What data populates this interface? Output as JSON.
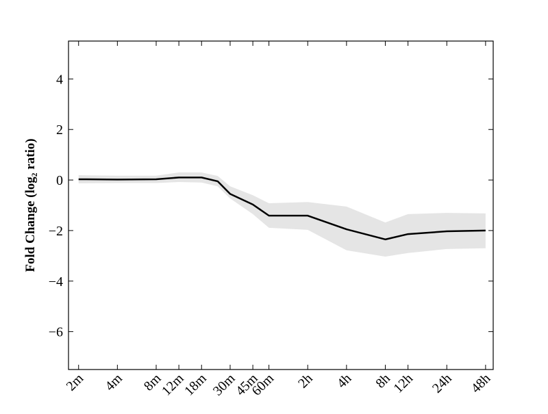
{
  "chart_data": {
    "type": "line",
    "ylabel": "Fold Change (log₂ ratio)",
    "x": [
      2,
      4,
      8,
      12,
      18,
      24,
      30,
      45,
      60,
      120,
      240,
      480,
      720,
      1440,
      2880
    ],
    "series": [
      {
        "color": "#000000",
        "values": [
          0.03,
          0.02,
          0.03,
          0.1,
          0.1,
          -0.05,
          -0.55,
          -0.97,
          -1.41,
          -1.41,
          -1.95,
          -2.35,
          -2.14,
          -2.03,
          -2.0
        ]
      }
    ],
    "band_upper": [
      0.19,
      0.17,
      0.17,
      0.3,
      0.3,
      0.16,
      -0.25,
      -0.6,
      -0.92,
      -0.87,
      -1.05,
      -1.68,
      -1.35,
      -1.3,
      -1.32
    ],
    "band_lower": [
      -0.13,
      -0.12,
      -0.12,
      -0.08,
      -0.1,
      -0.25,
      -0.73,
      -1.35,
      -1.89,
      -1.97,
      -2.78,
      -3.03,
      -2.89,
      -2.73,
      -2.7
    ],
    "band_color": "#e5e5e5",
    "xscale": "log",
    "xlim": [
      1.67,
      3300
    ],
    "xticks": [
      {
        "value": 2,
        "label": "2m"
      },
      {
        "value": 4,
        "label": "4m"
      },
      {
        "value": 8,
        "label": "8m"
      },
      {
        "value": 12,
        "label": "12m"
      },
      {
        "value": 18,
        "label": "18m"
      },
      {
        "value": 30,
        "label": "30m"
      },
      {
        "value": 45,
        "label": "45m"
      },
      {
        "value": 60,
        "label": "60m"
      },
      {
        "value": 120,
        "label": "2h"
      },
      {
        "value": 240,
        "label": "4h"
      },
      {
        "value": 480,
        "label": "8h"
      },
      {
        "value": 720,
        "label": "12h"
      },
      {
        "value": 1440,
        "label": "24h"
      },
      {
        "value": 2880,
        "label": "48h"
      }
    ],
    "ylim": [
      -7.5,
      5.5
    ],
    "yticks": [
      {
        "value": -6,
        "label": "−6"
      },
      {
        "value": -4,
        "label": "−4"
      },
      {
        "value": -2,
        "label": "−2"
      },
      0,
      2,
      4
    ]
  }
}
